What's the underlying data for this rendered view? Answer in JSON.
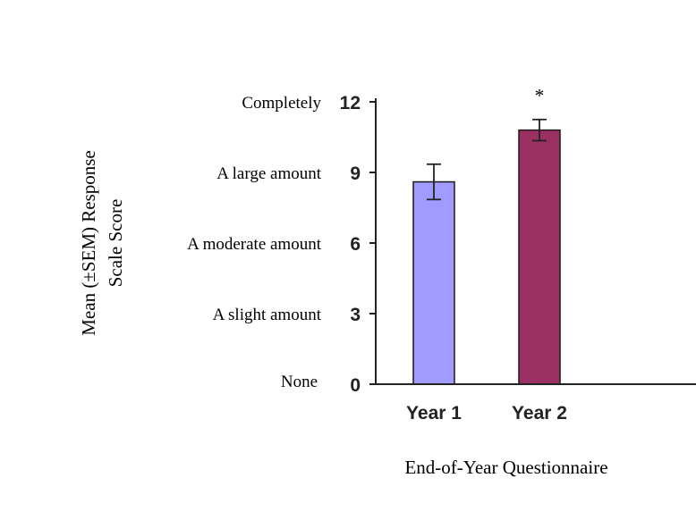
{
  "chart_data": {
    "type": "bar",
    "categories": [
      "Year 1",
      "Year 2"
    ],
    "values": [
      8.6,
      10.8
    ],
    "errors": [
      0.75,
      0.45
    ],
    "colors": [
      "#a09cff",
      "#9b3063"
    ],
    "bar_outline": "#1a1a1a",
    "ylim": [
      0,
      12
    ],
    "yticks": [
      "0",
      "3",
      "6",
      "9",
      "12"
    ],
    "ytick_values": [
      0,
      3,
      6,
      9,
      12
    ],
    "scale_labels": [
      "None",
      "A slight amount",
      "A moderate amount",
      "A large amount",
      "Completely"
    ],
    "ylabel_line1": "Mean (±SEM) Response",
    "ylabel_line2": "Scale Score",
    "xlabel": "End-of-Year Questionnaire",
    "annotation": "*",
    "annotation_category": "Year 2",
    "grid": false
  }
}
